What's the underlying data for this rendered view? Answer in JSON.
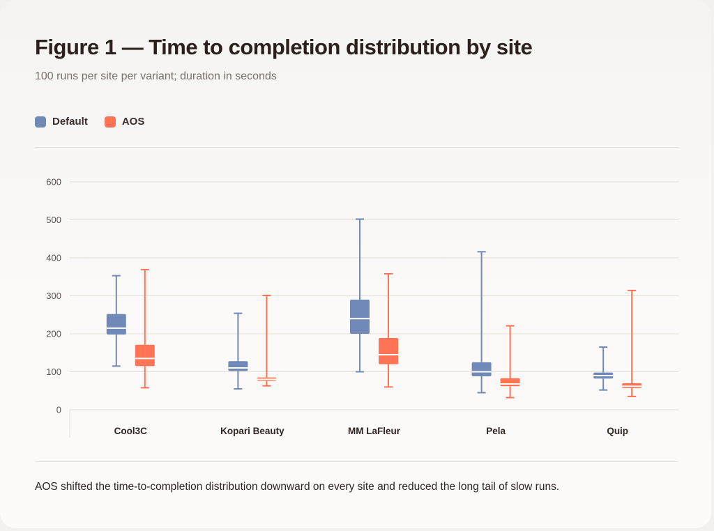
{
  "header": {
    "title": "Figure 1 — Time to completion distribution by site",
    "subtitle": "100 runs per site per variant; duration in seconds"
  },
  "footnote": "AOS shifted the time-to-completion distribution downward on every site and reduced the long tail of slow runs.",
  "colors": {
    "default": "#7189b7",
    "aos": "#ff7454",
    "grid": "#e3ddd8",
    "median": "#ffffff"
  },
  "chart_data": {
    "type": "boxplot",
    "title": "Figure 1 — Time to completion distribution by site",
    "xlabel": "",
    "ylabel": "",
    "ylim": [
      0,
      600
    ],
    "yticks": [
      0,
      100,
      200,
      300,
      400,
      500,
      600
    ],
    "grid": true,
    "legend_position": "top-left",
    "categories": [
      "Cool3C",
      "Kopari Beauty",
      "MM LaFleur",
      "Pela",
      "Quip"
    ],
    "series": [
      {
        "name": "Default",
        "color": "#7189b7",
        "boxes": [
          {
            "min": 115,
            "q1": 198,
            "median": 215,
            "q3": 252,
            "max": 353
          },
          {
            "min": 55,
            "q1": 102,
            "median": 110,
            "q3": 128,
            "max": 254
          },
          {
            "min": 100,
            "q1": 200,
            "median": 240,
            "q3": 290,
            "max": 502
          },
          {
            "min": 45,
            "q1": 88,
            "median": 100,
            "q3": 125,
            "max": 416
          },
          {
            "min": 52,
            "q1": 82,
            "median": 90,
            "q3": 98,
            "max": 165
          }
        ]
      },
      {
        "name": "AOS",
        "color": "#ff7454",
        "boxes": [
          {
            "min": 58,
            "q1": 115,
            "median": 135,
            "q3": 171,
            "max": 369
          },
          {
            "min": 63,
            "q1": 76,
            "median": 80,
            "q3": 85,
            "max": 301
          },
          {
            "min": 60,
            "q1": 120,
            "median": 145,
            "q3": 189,
            "max": 358
          },
          {
            "min": 32,
            "q1": 62,
            "median": 68,
            "q3": 83,
            "max": 221
          },
          {
            "min": 35,
            "q1": 57,
            "median": 62,
            "q3": 70,
            "max": 314
          }
        ]
      }
    ]
  }
}
